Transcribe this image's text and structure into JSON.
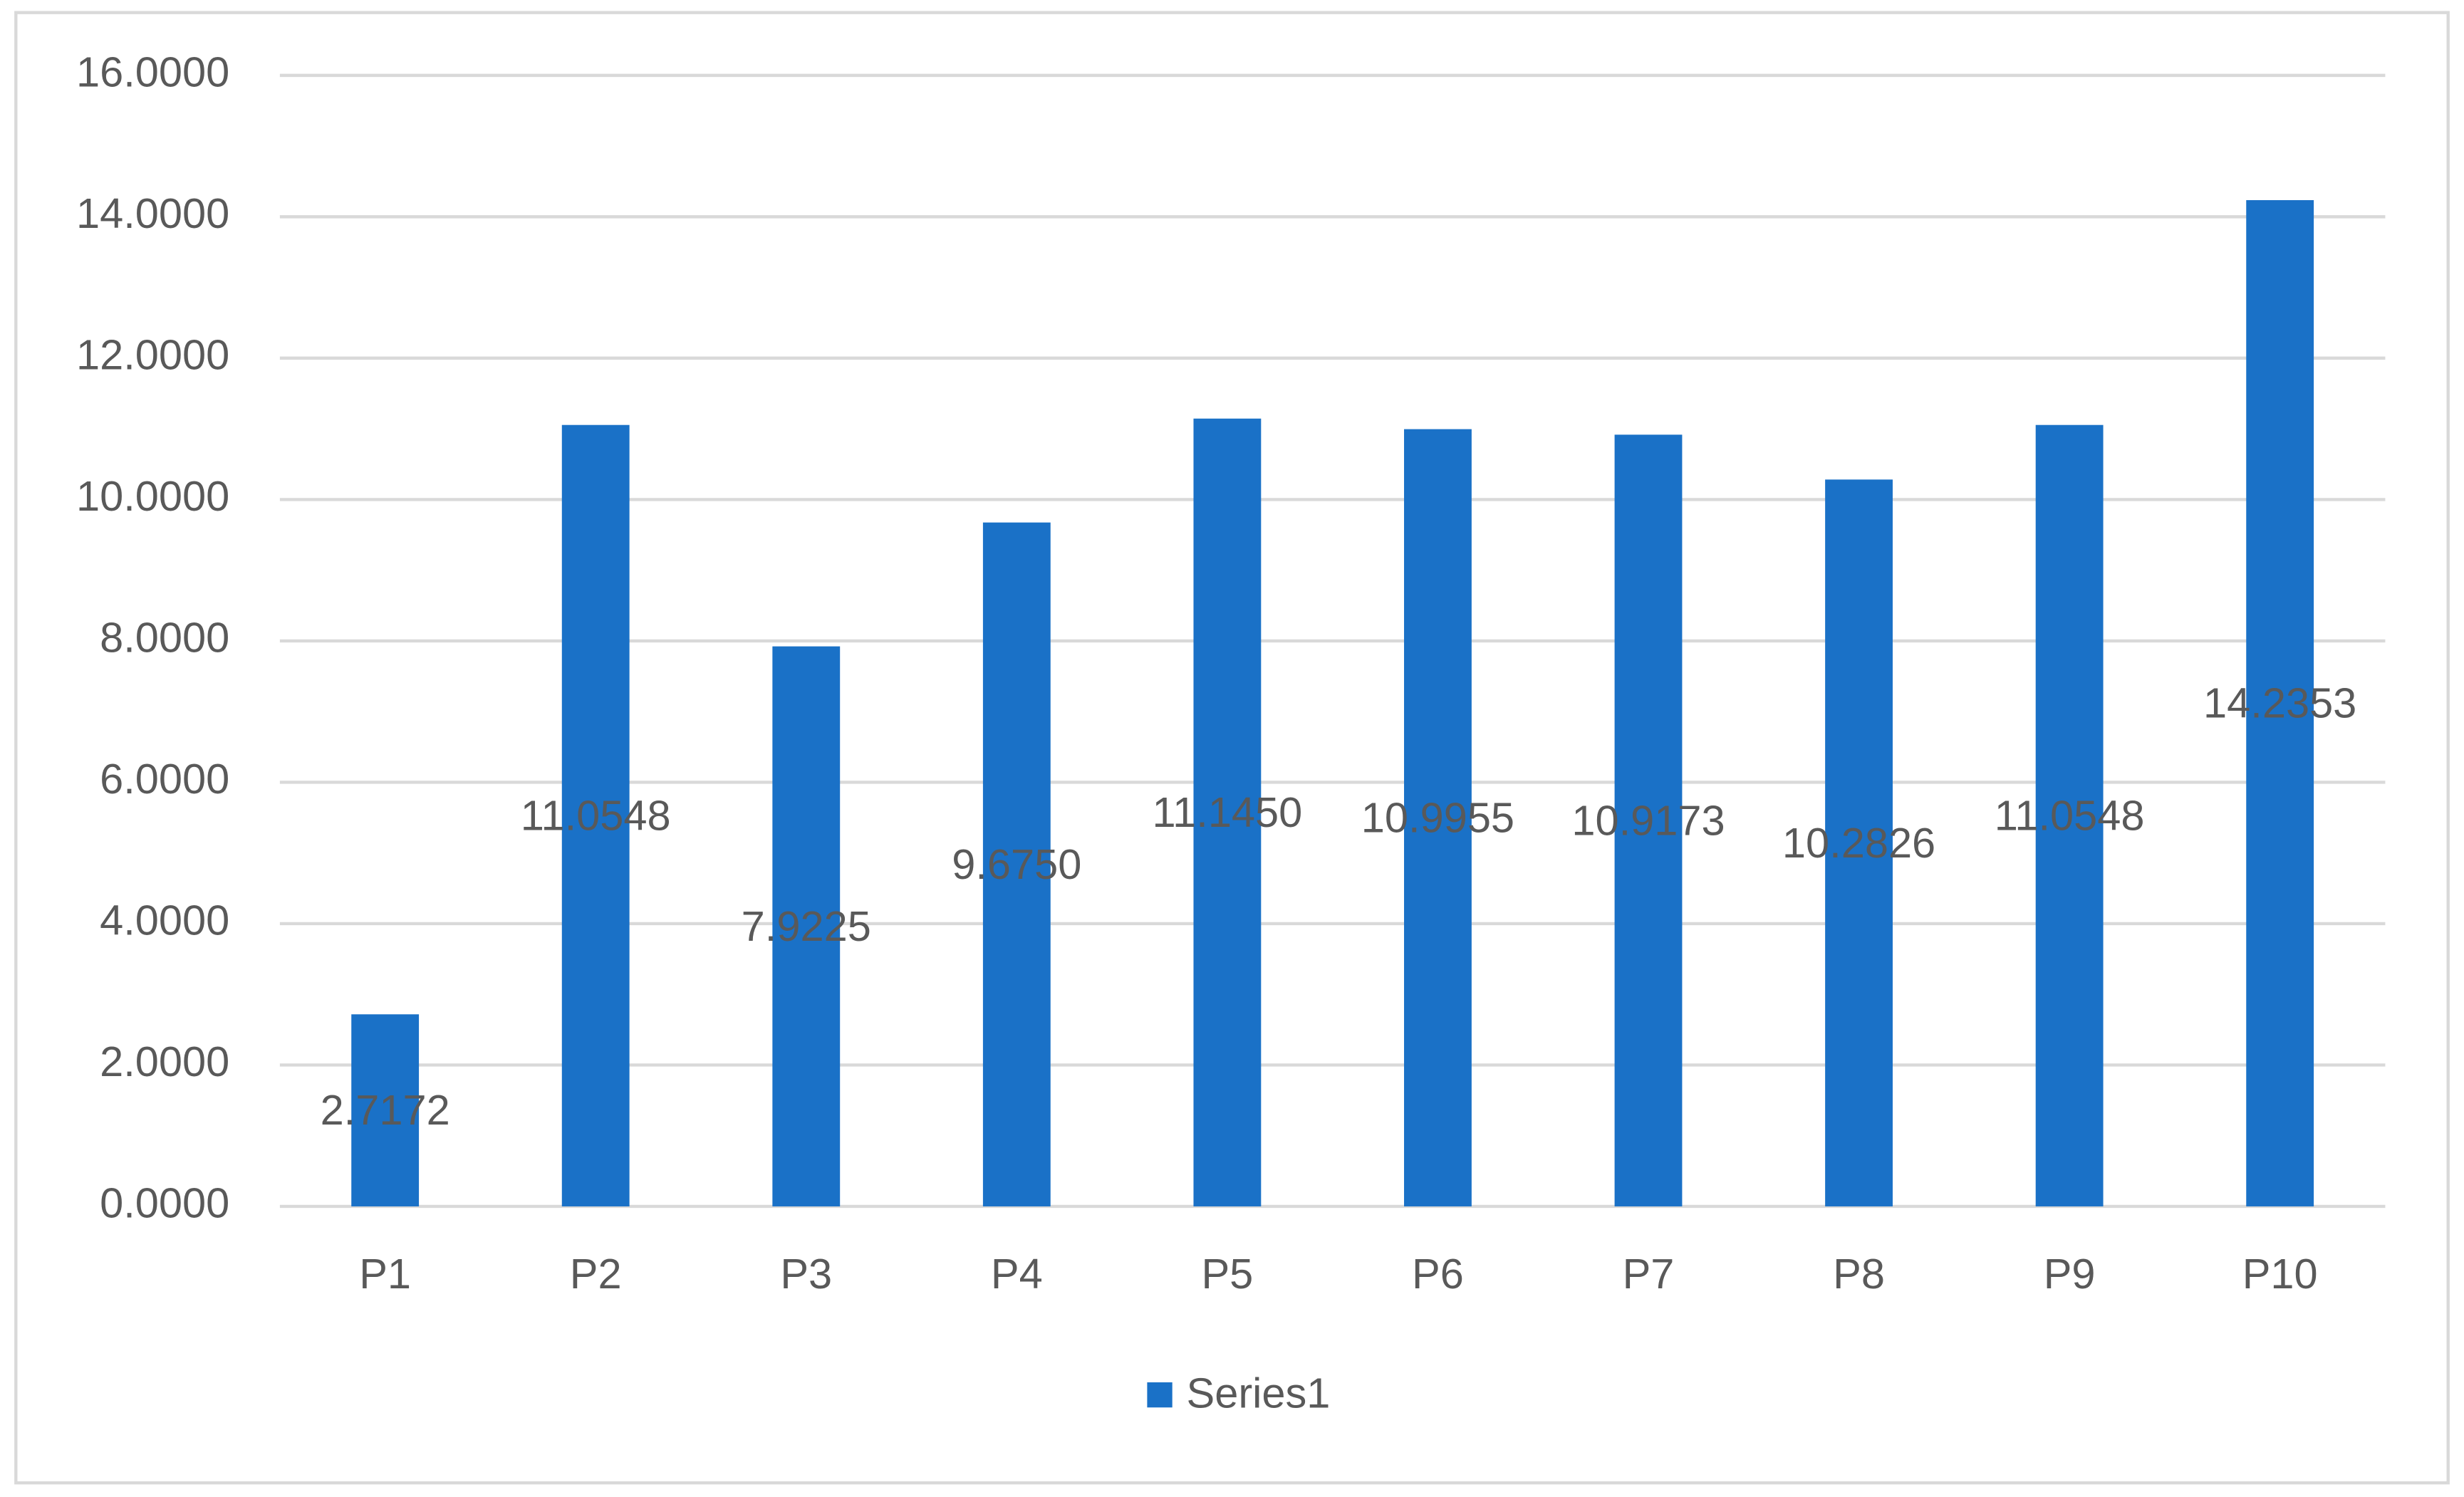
{
  "chart_data": {
    "type": "bar",
    "categories": [
      "P1",
      "P2",
      "P3",
      "P4",
      "P5",
      "P6",
      "P7",
      "P8",
      "P9",
      "P10"
    ],
    "series": [
      {
        "name": "Series1",
        "color": "#1a71c7",
        "values": [
          2.7172,
          11.0548,
          7.9225,
          9.675,
          11.145,
          10.9955,
          10.9173,
          10.2826,
          11.0548,
          14.2353
        ],
        "value_labels": [
          "2.7172",
          "11.0548",
          "7.9225",
          "9.6750",
          "11.1450",
          "10.9955",
          "10.9173",
          "10.2826",
          "11.0548",
          "14.2353"
        ]
      }
    ],
    "ylim": [
      0,
      16
    ],
    "yticks": [
      {
        "value": 0,
        "label": "0.0000"
      },
      {
        "value": 2,
        "label": "2.0000"
      },
      {
        "value": 4,
        "label": "4.0000"
      },
      {
        "value": 6,
        "label": "6.0000"
      },
      {
        "value": 8,
        "label": "8.0000"
      },
      {
        "value": 10,
        "label": "10.0000"
      },
      {
        "value": 12,
        "label": "12.0000"
      },
      {
        "value": 14,
        "label": "14.0000"
      },
      {
        "value": 16,
        "label": "16.0000"
      }
    ],
    "grid": true,
    "legend": "bottom"
  }
}
